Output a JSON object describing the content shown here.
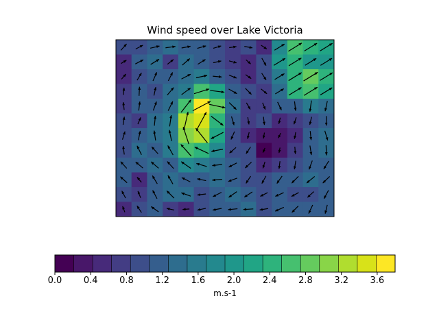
{
  "chart_data": {
    "type": "heatmap",
    "title": "Wind speed over Lake Victoria",
    "overlay": "quiver (wind vectors)",
    "colormap": "viridis",
    "colorbar": {
      "label": "m.s-1",
      "orientation": "horizontal",
      "placement": "bottom",
      "range": [
        0.0,
        3.8
      ],
      "level_step": 0.2,
      "tick_labels": [
        "0.0",
        "0.4",
        "0.8",
        "1.2",
        "1.6",
        "2.0",
        "2.4",
        "2.8",
        "3.2",
        "3.6"
      ],
      "tick_values": [
        0.0,
        0.4,
        0.8,
        1.2,
        1.6,
        2.0,
        2.4,
        2.8,
        3.2,
        3.6
      ]
    },
    "grid": {
      "rows": 12,
      "cols": 14
    },
    "speed": [
      [
        1.0,
        0.9,
        1.2,
        1.3,
        1.1,
        1.1,
        0.9,
        0.7,
        0.9,
        0.6,
        1.7,
        2.6,
        2.4,
        2.3
      ],
      [
        0.5,
        1.1,
        1.3,
        0.8,
        1.3,
        1.1,
        0.9,
        0.8,
        0.5,
        1.0,
        2.1,
        2.4,
        2.0,
        2.1
      ],
      [
        0.6,
        1.0,
        1.2,
        1.2,
        1.4,
        1.6,
        1.1,
        0.9,
        0.6,
        0.9,
        1.6,
        2.5,
        2.8,
        2.4
      ],
      [
        0.7,
        1.1,
        1.0,
        1.3,
        1.6,
        2.6,
        2.3,
        1.2,
        1.0,
        0.8,
        1.3,
        2.4,
        2.6,
        2.2
      ],
      [
        0.8,
        1.1,
        1.2,
        1.4,
        2.7,
        3.6,
        2.8,
        1.3,
        0.8,
        0.7,
        1.1,
        1.2,
        1.6,
        1.4
      ],
      [
        0.9,
        0.7,
        1.3,
        1.6,
        3.2,
        3.5,
        2.5,
        1.1,
        0.7,
        0.9,
        0.5,
        0.7,
        0.9,
        1.2
      ],
      [
        1.0,
        1.2,
        1.3,
        1.6,
        3.1,
        3.3,
        2.2,
        1.0,
        0.6,
        0.4,
        0.3,
        0.6,
        1.1,
        1.3
      ],
      [
        1.0,
        1.3,
        1.2,
        1.5,
        2.6,
        2.5,
        1.7,
        1.0,
        0.9,
        0.2,
        0.3,
        0.7,
        1.2,
        1.3
      ],
      [
        1.1,
        1.2,
        1.3,
        1.2,
        1.7,
        1.5,
        1.3,
        1.1,
        1.0,
        0.6,
        0.8,
        1.0,
        1.2,
        1.2
      ],
      [
        1.1,
        0.6,
        1.2,
        1.3,
        1.2,
        1.1,
        1.3,
        1.2,
        1.0,
        1.0,
        1.1,
        1.2,
        1.4,
        1.2
      ],
      [
        0.9,
        0.7,
        1.2,
        1.4,
        1.3,
        1.0,
        1.2,
        1.3,
        1.2,
        0.9,
        1.1,
        0.9,
        1.0,
        1.2
      ],
      [
        0.5,
        0.9,
        1.1,
        0.8,
        0.6,
        1.0,
        1.1,
        1.2,
        1.3,
        1.0,
        1.2,
        1.1,
        1.2,
        1.1
      ]
    ],
    "colors": [
      "#440154",
      "#481769",
      "#472a7a",
      "#433d84",
      "#3d4e8a",
      "#355e8d",
      "#2e6d8e",
      "#297b8e",
      "#23898e",
      "#1f978b",
      "#21a585",
      "#2eb37c",
      "#46c06f",
      "#65cb5e",
      "#89d548",
      "#b0dd2f",
      "#d8e219",
      "#fde725"
    ]
  }
}
